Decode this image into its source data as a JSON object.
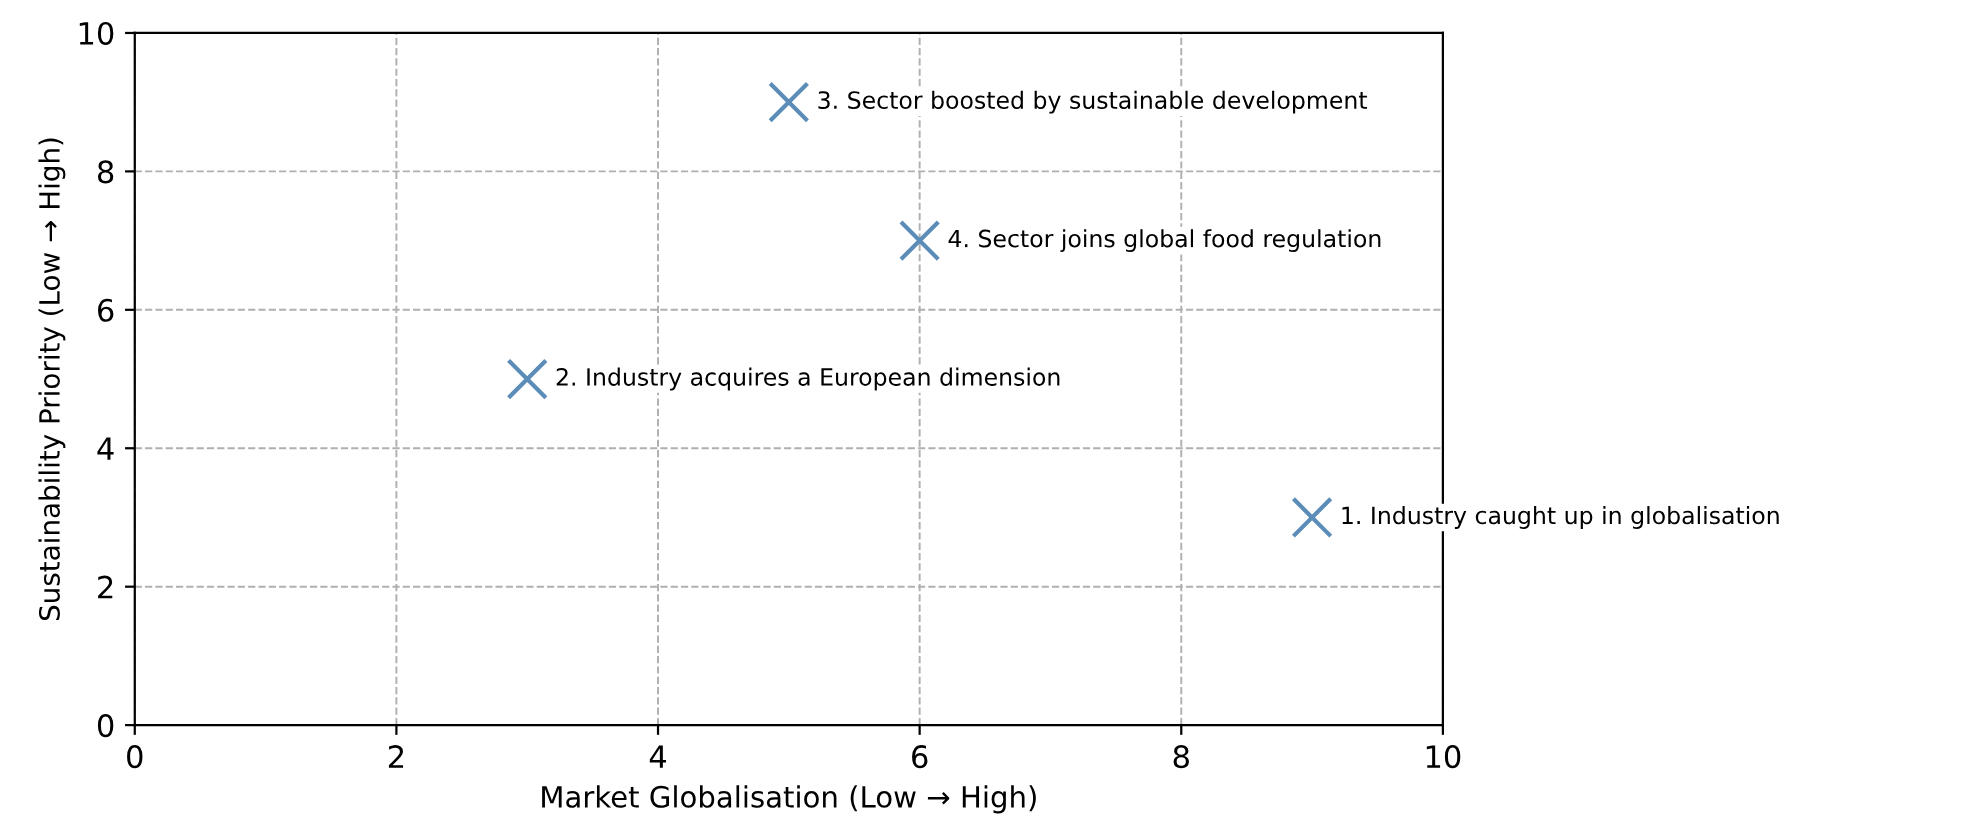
{
  "chart_data": {
    "type": "scatter",
    "xlabel": "Market Globalisation (Low → High)",
    "ylabel": "Sustainability Priority (Low → High)",
    "x": [
      9,
      3,
      5,
      6
    ],
    "series": [
      {
        "color": "#5b8db8",
        "values": [
          3,
          5,
          9,
          7
        ]
      }
    ],
    "marker": "cross",
    "grid": true,
    "xlim": [
      0,
      10
    ],
    "ylim": [
      0,
      10
    ],
    "xticks": [
      0,
      2,
      4,
      6,
      8,
      10
    ],
    "yticks": [
      0,
      2,
      4,
      6,
      8,
      10
    ],
    "annotations": [
      {
        "text": "1. Industry caught up in globalisation",
        "x": 9,
        "y": 3
      },
      {
        "text": "2. Industry acquires a European dimension",
        "x": 3,
        "y": 5
      },
      {
        "text": "3. Sector boosted by sustainable development",
        "x": 5,
        "y": 9
      },
      {
        "text": "4. Sector joins global food regulation",
        "x": 6,
        "y": 7
      }
    ]
  }
}
